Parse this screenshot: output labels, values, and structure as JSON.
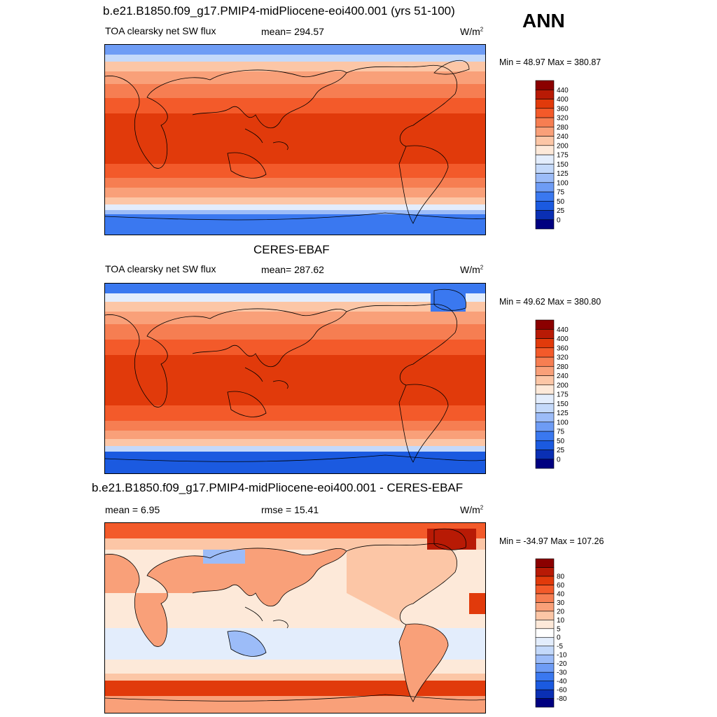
{
  "season": "ANN",
  "panel1": {
    "title": "b.e21.B1850.f09_g17.PMIP4-midPliocene-eoi400.001 (yrs 51-100)",
    "variable": "TOA clearsky net SW flux",
    "stat_text": "mean= 294.57",
    "units": "W/m",
    "units_exp": "2",
    "minmax": "Min =  48.97 Max = 380.87",
    "colorbar": {
      "colors": [
        "#000080",
        "#0a2fb4",
        "#1b5ae0",
        "#3a78f0",
        "#6e9cf5",
        "#9cbcf8",
        "#c4d9fa",
        "#e3edfc",
        "#fde9d9",
        "#fcc6a6",
        "#f9a079",
        "#f67e52",
        "#f35a2a",
        "#e13a0b",
        "#b81a05",
        "#8b0000"
      ],
      "labels": [
        "0",
        "25",
        "50",
        "75",
        "100",
        "125",
        "150",
        "175",
        "200",
        "240",
        "280",
        "320",
        "360",
        "400",
        "440"
      ]
    }
  },
  "panel2": {
    "title": "CERES-EBAF",
    "variable": "TOA clearsky net SW flux",
    "stat_text": "mean= 287.62",
    "units": "W/m",
    "units_exp": "2",
    "minmax": "Min =  49.62 Max = 380.80",
    "colorbar": {
      "colors": [
        "#000080",
        "#0a2fb4",
        "#1b5ae0",
        "#3a78f0",
        "#6e9cf5",
        "#9cbcf8",
        "#c4d9fa",
        "#e3edfc",
        "#fde9d9",
        "#fcc6a6",
        "#f9a079",
        "#f67e52",
        "#f35a2a",
        "#e13a0b",
        "#b81a05",
        "#8b0000"
      ],
      "labels": [
        "0",
        "25",
        "50",
        "75",
        "100",
        "125",
        "150",
        "175",
        "200",
        "240",
        "280",
        "320",
        "360",
        "400",
        "440"
      ]
    }
  },
  "panel3": {
    "title": "b.e21.B1850.f09_g17.PMIP4-midPliocene-eoi400.001 - CERES-EBAF",
    "stat_text": "mean =   6.95",
    "rmse_text": "rmse =  15.41",
    "units": "W/m",
    "units_exp": "2",
    "minmax": "Min = -34.97 Max = 107.26",
    "colorbar": {
      "colors": [
        "#000080",
        "#0a2fb4",
        "#1b5ae0",
        "#3a78f0",
        "#6e9cf5",
        "#9cbcf8",
        "#c4d9fa",
        "#e3edfc",
        "#ffffff",
        "#fde9d9",
        "#fcc6a6",
        "#f9a079",
        "#f67e52",
        "#f35a2a",
        "#e13a0b",
        "#b81a05",
        "#8b0000"
      ],
      "labels": [
        "-80",
        "-60",
        "-40",
        "-30",
        "-20",
        "-10",
        "-5",
        "0",
        "5",
        "10",
        "20",
        "30",
        "40",
        "60",
        "80"
      ]
    }
  }
}
